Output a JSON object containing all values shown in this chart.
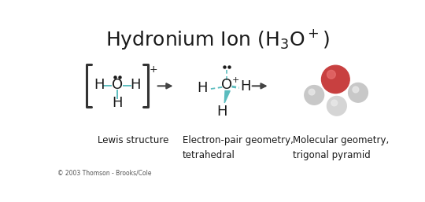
{
  "title": "Hydronium Ion (H$_3$O$^+$)",
  "background_color": "#ffffff",
  "copyright_text": "© 2003 Thomson - Brooks/Cole",
  "label1": "Lewis structure",
  "label2": "Electron-pair geometry,\ntetrahedral",
  "label3": "Molecular geometry,\ntrigonal pyramid",
  "teal_color": "#5bbcbe",
  "dark_color": "#1a1a1a",
  "arrow_color": "#444444",
  "bracket_color": "#333333",
  "label_fontsize": 8.5,
  "title_fontsize": 18
}
